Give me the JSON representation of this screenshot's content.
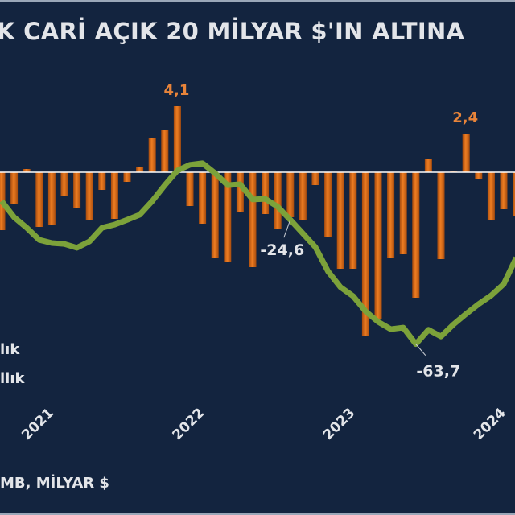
{
  "chart_data": {
    "type": "bar+line",
    "title": "K CARİ AÇIK 20 MİLYAR $'IN ALTINA",
    "source": "MB, MİLYAR $",
    "x_tick_labels": [
      "2021",
      "2022",
      "2023",
      "2024"
    ],
    "x_tick_months": [
      "2021-01",
      "2022-01",
      "2023-01",
      "2024-01"
    ],
    "categories": [
      "2020-09",
      "2020-10",
      "2020-11",
      "2020-12",
      "2021-01",
      "2021-02",
      "2021-03",
      "2021-04",
      "2021-05",
      "2021-06",
      "2021-07",
      "2021-08",
      "2021-09",
      "2021-10",
      "2021-11",
      "2021-12",
      "2022-01",
      "2022-02",
      "2022-03",
      "2022-04",
      "2022-05",
      "2022-06",
      "2022-07",
      "2022-08",
      "2022-09",
      "2022-10",
      "2022-11",
      "2022-12",
      "2023-01",
      "2023-02",
      "2023-03",
      "2023-04",
      "2023-05",
      "2023-06",
      "2023-07",
      "2023-08",
      "2023-09",
      "2023-10",
      "2023-11",
      "2023-12",
      "2024-01",
      "2024-02"
    ],
    "series": [
      {
        "name": "lık",
        "type": "bar",
        "axis": "primary",
        "color": "#e0701c",
        "values": [
          -3.6,
          -2.0,
          0.2,
          -3.4,
          -3.3,
          -1.5,
          -2.2,
          -3.0,
          -1.1,
          -2.9,
          -0.6,
          0.3,
          2.1,
          2.6,
          4.1,
          -2.1,
          -3.2,
          -5.3,
          -5.6,
          -2.5,
          -5.9,
          -2.6,
          -3.5,
          -2.8,
          -3.0,
          -0.8,
          -4.0,
          -6.0,
          -6.0,
          -10.2,
          -9.1,
          -5.3,
          -5.1,
          -7.8,
          0.8,
          -5.4,
          0.1,
          2.4,
          -0.4,
          -3.0,
          -2.3,
          -2.7
        ]
      },
      {
        "name": "llık",
        "type": "line",
        "axis": "secondary",
        "color": "#7ca23a",
        "values": [
          -18.7,
          -23.8,
          -27.1,
          -30.9,
          -31.9,
          -32.2,
          -33.4,
          -31.4,
          -27.1,
          -26.1,
          -24.6,
          -23.0,
          -18.7,
          -13.7,
          -9.1,
          -7.3,
          -6.8,
          -9.9,
          -13.7,
          -13.4,
          -18.2,
          -18.0,
          -20.5,
          -24.6,
          -28.9,
          -33.2,
          -40.8,
          -45.8,
          -48.6,
          -53.4,
          -56.7,
          -59.0,
          -58.5,
          -63.7,
          -59.2,
          -61.3,
          -57.5,
          -54.2,
          -51.1,
          -48.4,
          -44.8,
          -36.5
        ]
      }
    ],
    "annotations": [
      {
        "series": "bar",
        "category": "2021-11",
        "text": "4,1",
        "color": "#e8843a"
      },
      {
        "series": "bar",
        "category": "2023-10",
        "text": "2,4",
        "color": "#e8843a"
      },
      {
        "series": "line",
        "category": "2022-08",
        "text": "-24,6",
        "color": "#e3e5e9"
      },
      {
        "series": "line",
        "category": "2023-06",
        "text": "-63,7",
        "color": "#e3e5e9"
      }
    ],
    "zero_line_color": "#ffffff",
    "grid": false
  }
}
